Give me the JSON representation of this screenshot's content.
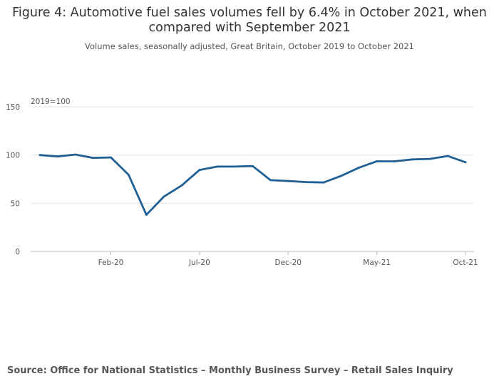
{
  "title": "Figure 4: Automotive fuel sales volumes fell by 6.4% in October 2021, when compared with September 2021",
  "subtitle": "Volume sales, seasonally adjusted, Great Britain, October 2019 to October 2021",
  "source": "Source: Office for National Statistics – Monthly Business Survey – Retail Sales Inquiry",
  "colors": {
    "line": "#206095",
    "grid": "#e5e5e5",
    "axis": "#bbbbbb"
  },
  "chart_data": {
    "type": "line",
    "title": "Figure 4: Automotive fuel sales volumes fell by 6.4% in October 2021, when compared with September 2021",
    "subtitle": "Volume sales, seasonally adjusted, Great Britain, October 2019 to October 2021",
    "ylabel": "2019=100",
    "ylim": [
      0,
      150
    ],
    "yticks": [
      0,
      50,
      100,
      150
    ],
    "grid": true,
    "xticks": [
      {
        "label": "Feb-20",
        "index": 4
      },
      {
        "label": "Jul-20",
        "index": 9
      },
      {
        "label": "Dec-20",
        "index": 14
      },
      {
        "label": "May-21",
        "index": 19
      },
      {
        "label": "Oct-21",
        "index": 24
      }
    ],
    "x": [
      "2019-10",
      "2019-11",
      "2019-12",
      "2020-01",
      "2020-02",
      "2020-03",
      "2020-04",
      "2020-05",
      "2020-06",
      "2020-07",
      "2020-08",
      "2020-09",
      "2020-10",
      "2020-11",
      "2020-12",
      "2021-01",
      "2021-02",
      "2021-03",
      "2021-04",
      "2021-05",
      "2021-06",
      "2021-07",
      "2021-08",
      "2021-09",
      "2021-10"
    ],
    "series": [
      {
        "values": [
          100,
          98.5,
          100.5,
          97,
          97.5,
          79.5,
          38,
          57,
          68.5,
          84.5,
          88,
          88,
          88.5,
          74,
          73,
          72,
          71.5,
          78.5,
          87,
          93.5,
          93.5,
          95.5,
          96,
          99,
          92.5
        ]
      }
    ]
  }
}
